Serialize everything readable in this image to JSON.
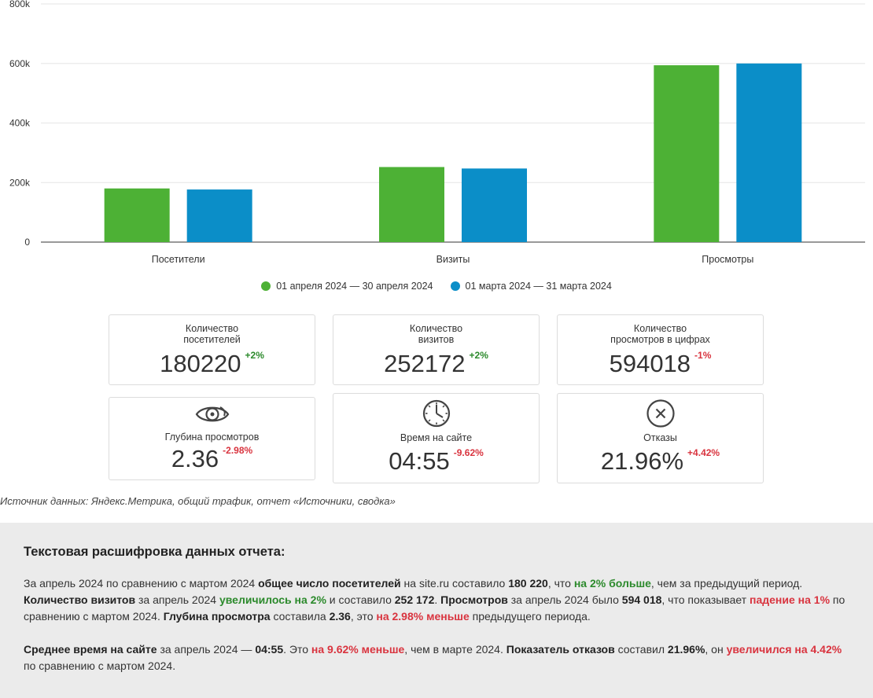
{
  "chart_data": {
    "type": "bar",
    "categories": [
      "Посетители",
      "Визиты",
      "Просмотры"
    ],
    "series": [
      {
        "name": "01 апреля 2024 — 30 апреля 2024",
        "color": "#4db135",
        "values": [
          180220,
          252172,
          594018
        ]
      },
      {
        "name": "01 марта 2024 — 31 марта 2024",
        "color": "#0b8ec8",
        "values": [
          176686,
          247227,
          600018
        ]
      }
    ],
    "yticks": [
      0,
      200000,
      400000,
      600000,
      800000
    ],
    "ytick_labels": [
      "0",
      "200k",
      "400k",
      "600k",
      "800k"
    ],
    "ylim": [
      0,
      800000
    ],
    "grid": true,
    "legend_position": "bottom"
  },
  "cards": [
    {
      "label": "Количество\nпосетителей",
      "value": "180220",
      "delta": "+2%",
      "trend": "pos"
    },
    {
      "label": "Количество\nвизитов",
      "value": "252172",
      "delta": "+2%",
      "trend": "pos"
    },
    {
      "label": "Количество\nпросмотров в цифрах",
      "value": "594018",
      "delta": "-1%",
      "trend": "neg"
    },
    {
      "label": "Глубина просмотров",
      "value": "2.36",
      "delta": "-2.98%",
      "trend": "neg",
      "icon": "eye-icon"
    },
    {
      "label": "Время на сайте",
      "value": "04:55",
      "delta": "-9.62%",
      "trend": "neg",
      "icon": "clock-icon"
    },
    {
      "label": "Отказы",
      "value": "21.96%",
      "delta": "+4.42%",
      "trend": "neg",
      "icon": "close-circle-icon"
    }
  ],
  "source": "Источник данных: Яндекс.Метрика, общий трафик, отчет «Источники, сводка»",
  "summary": {
    "title": "Текстовая расшифровка данных отчета:",
    "p1": [
      {
        "t": "За апрель 2024 по сравнению с мартом 2024 ",
        "s": ""
      },
      {
        "t": "общее число посетителей",
        "s": "b"
      },
      {
        "t": " на site.ru составило ",
        "s": ""
      },
      {
        "t": "180 220",
        "s": "b"
      },
      {
        "t": ", что ",
        "s": ""
      },
      {
        "t": "на 2% больше",
        "s": "g"
      },
      {
        "t": ", чем за предыдущий период. ",
        "s": ""
      },
      {
        "t": "Количество визитов",
        "s": "b"
      },
      {
        "t": " за апрель 2024 ",
        "s": ""
      },
      {
        "t": "увеличилось на 2%",
        "s": "g"
      },
      {
        "t": " и составило ",
        "s": ""
      },
      {
        "t": "252 172",
        "s": "b"
      },
      {
        "t": ". ",
        "s": ""
      },
      {
        "t": "Просмотров",
        "s": "b"
      },
      {
        "t": " за апрель 2024 было ",
        "s": ""
      },
      {
        "t": "594 018",
        "s": "b"
      },
      {
        "t": ", что показывает ",
        "s": ""
      },
      {
        "t": "падение на 1%",
        "s": "r"
      },
      {
        "t": " по сравнению с мартом 2024. ",
        "s": ""
      },
      {
        "t": "Глубина просмотра",
        "s": "b"
      },
      {
        "t": " составила ",
        "s": ""
      },
      {
        "t": "2.36",
        "s": "b"
      },
      {
        "t": ", это ",
        "s": ""
      },
      {
        "t": "на 2.98% меньше",
        "s": "r"
      },
      {
        "t": " предыдущего периода.",
        "s": ""
      }
    ],
    "p2": [
      {
        "t": "Среднее время на сайте",
        "s": "b"
      },
      {
        "t": " за апрель 2024 — ",
        "s": ""
      },
      {
        "t": "04:55",
        "s": "b"
      },
      {
        "t": ". Это ",
        "s": ""
      },
      {
        "t": "на 9.62% меньше",
        "s": "r"
      },
      {
        "t": ", чем в марте 2024. ",
        "s": ""
      },
      {
        "t": "Показатель отказов",
        "s": "b"
      },
      {
        "t": " составил ",
        "s": ""
      },
      {
        "t": "21.96%",
        "s": "b"
      },
      {
        "t": ", он ",
        "s": ""
      },
      {
        "t": "увеличился на 4.42%",
        "s": "r"
      },
      {
        "t": " по сравнению с мартом 2024.",
        "s": ""
      }
    ]
  }
}
